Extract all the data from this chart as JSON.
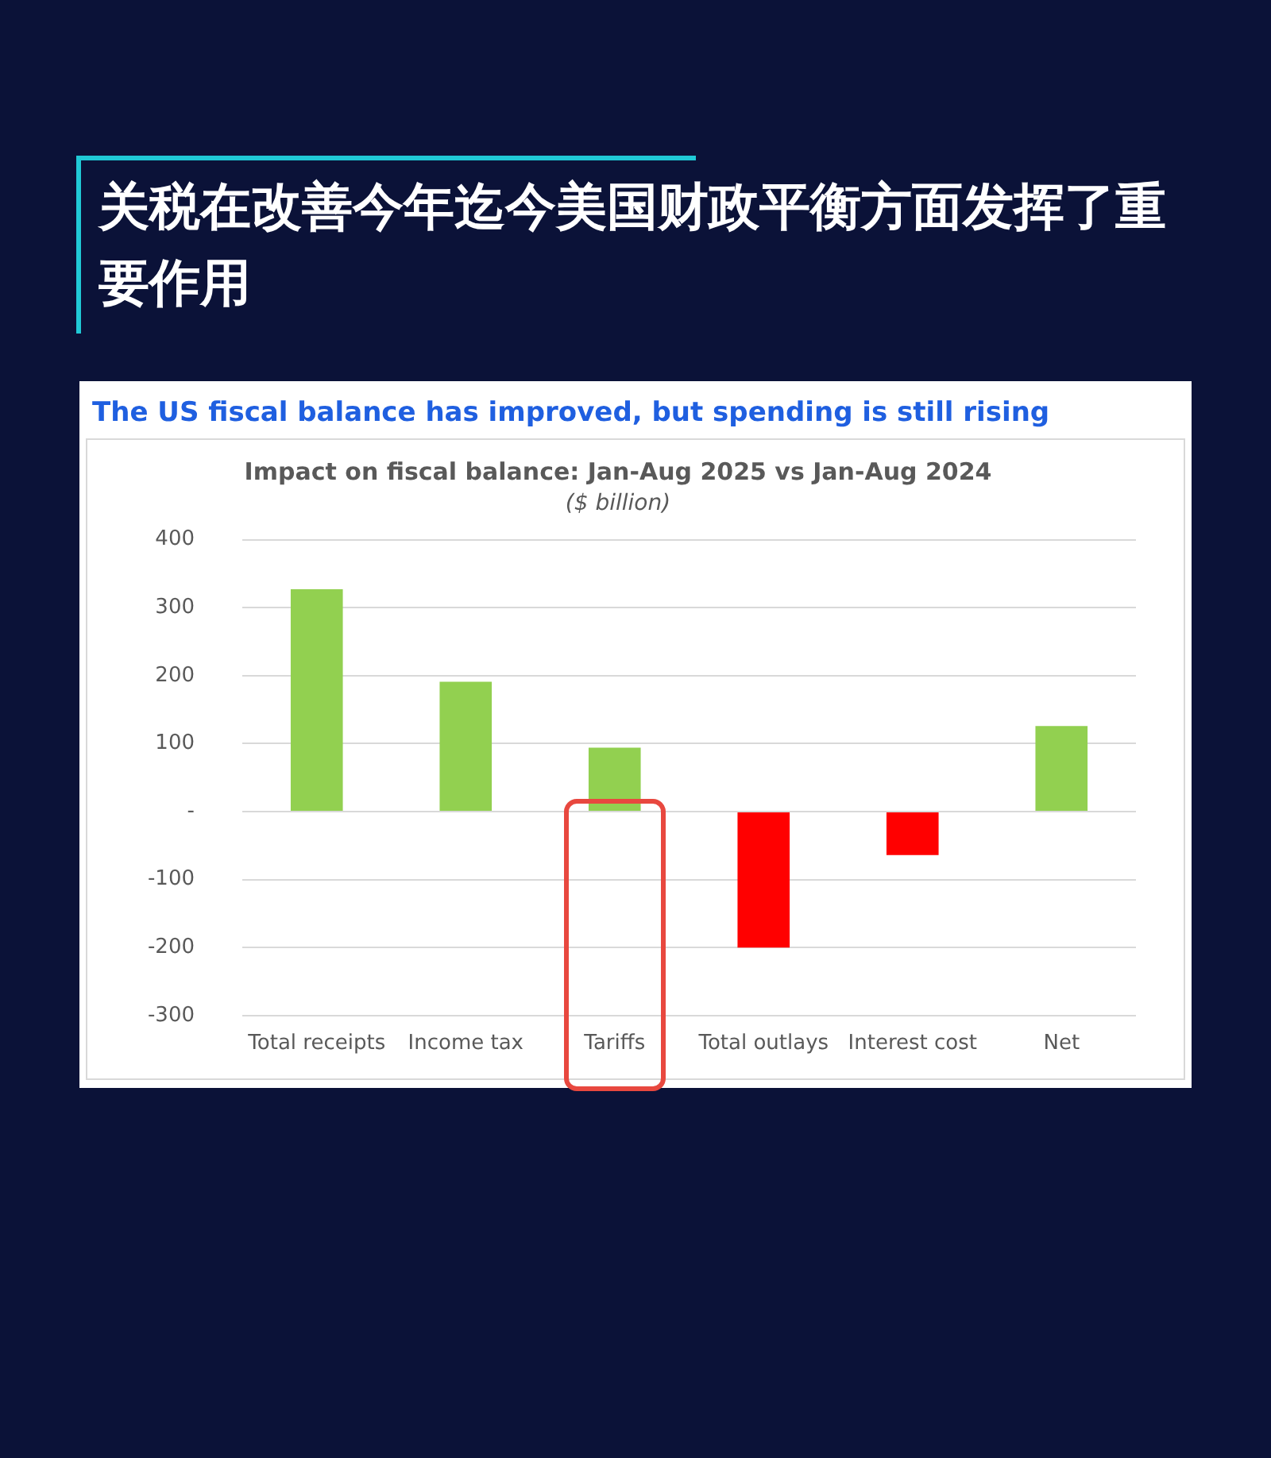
{
  "chart_data": {
    "type": "bar",
    "title": "关税在改善今年迄今美国财政平衡方面发挥了重要作用",
    "subtitle": "The US fiscal balance has improved, but spending is still rising",
    "annotations": [
      "Impact on fiscal balance: Jan-Aug 2025 vs Jan-Aug 2024",
      "($ billion)"
    ],
    "categories": [
      "Total receipts",
      "Income tax",
      "Tariffs",
      "Total outlays",
      "Interest cost",
      "Net"
    ],
    "values": [
      327,
      191,
      94,
      -200,
      -64,
      126
    ],
    "colors": [
      "#92d050",
      "#92d050",
      "#92d050",
      "#ff0000",
      "#ff0000",
      "#92d050"
    ],
    "ylim": [
      -300,
      400
    ],
    "yticks": [
      400,
      300,
      200,
      100,
      {
        "value": 0,
        "label": "-"
      },
      -100,
      -200,
      -300
    ],
    "grid": "y",
    "legend": false
  }
}
